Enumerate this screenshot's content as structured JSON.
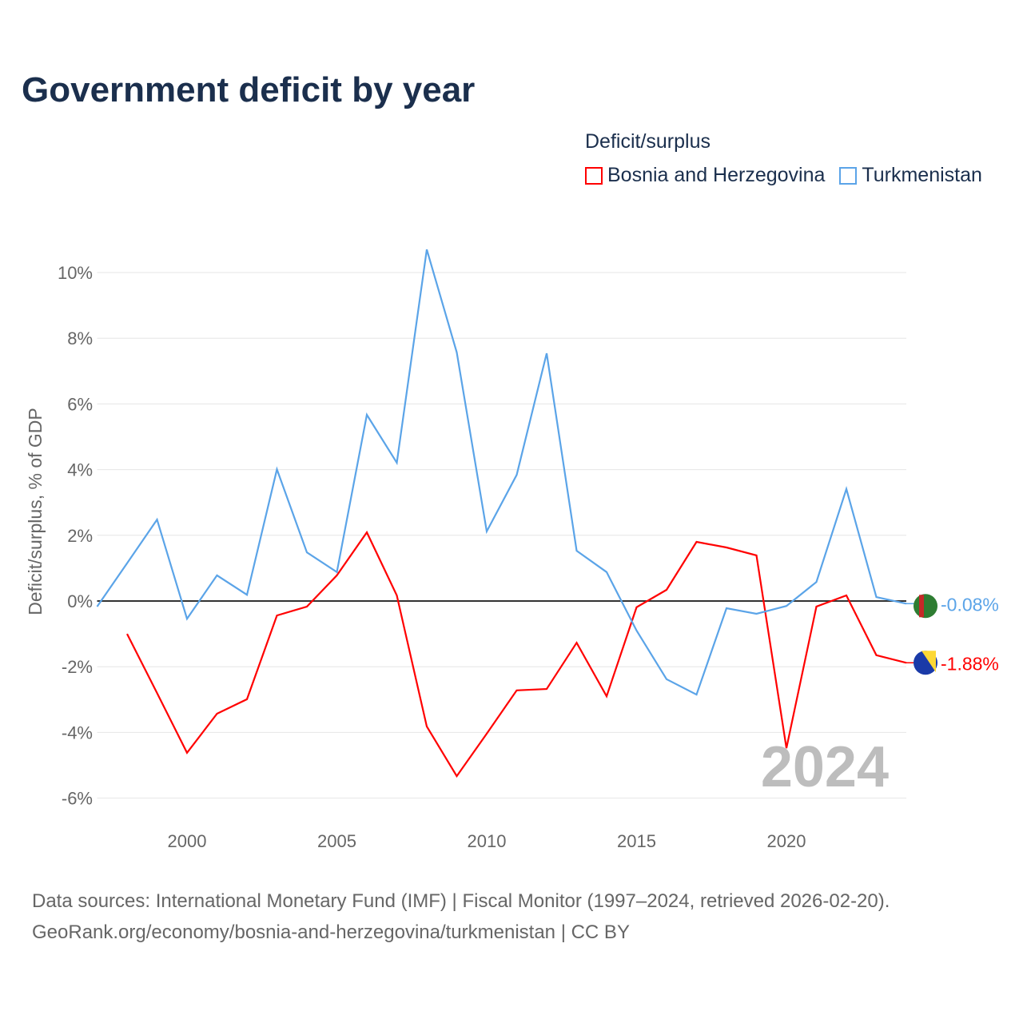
{
  "title": "Government deficit by year",
  "legend_title": "Deficit/surplus",
  "source_line1": "Data sources: International Monetary Fund (IMF) | Fiscal Monitor (1997–2024, retrieved 2026-02-20).",
  "source_line2": "GeoRank.org/economy/bosnia-and-herzegovina/turkmenistan | CC BY",
  "chart_data": {
    "type": "line",
    "title": "Government deficit by year",
    "xlabel": "",
    "ylabel": "Deficit/surplus, % of GDP",
    "xlim": [
      1997,
      2024
    ],
    "ylim": [
      -7,
      11
    ],
    "xticks": [
      2000,
      2005,
      2010,
      2015,
      2020
    ],
    "yticks": [
      -6,
      -4,
      -2,
      0,
      2,
      4,
      6,
      8,
      10
    ],
    "ytick_labels": [
      "-6%",
      "-4%",
      "-2%",
      "0%",
      "2%",
      "4%",
      "6%",
      "8%",
      "10%"
    ],
    "grid": true,
    "legend_position": "top-right",
    "year_watermark": "2024",
    "series": [
      {
        "name": "Bosnia and Herzegovina",
        "color": "#ff0000",
        "end_label": "-1.88%",
        "x": [
          1998,
          1999,
          2000,
          2001,
          2002,
          2003,
          2004,
          2005,
          2006,
          2007,
          2008,
          2009,
          2010,
          2011,
          2012,
          2013,
          2014,
          2015,
          2016,
          2017,
          2018,
          2019,
          2020,
          2021,
          2022,
          2023,
          2024
        ],
        "values": [
          -1.0,
          -2.8,
          -4.62,
          -3.43,
          -2.99,
          -0.44,
          -0.17,
          0.78,
          2.09,
          0.17,
          -3.82,
          -5.33,
          -4.04,
          -2.72,
          -2.68,
          -1.27,
          -2.9,
          -0.19,
          0.34,
          1.8,
          1.63,
          1.39,
          -4.48,
          -0.17,
          0.17,
          -1.65,
          -1.88
        ]
      },
      {
        "name": "Turkmenistan",
        "color": "#5ba4e8",
        "end_label": "-0.08%",
        "x": [
          1997,
          1998,
          1999,
          2000,
          2001,
          2002,
          2003,
          2004,
          2005,
          2006,
          2007,
          2008,
          2009,
          2010,
          2011,
          2012,
          2013,
          2014,
          2015,
          2016,
          2017,
          2018,
          2019,
          2020,
          2021,
          2022,
          2023,
          2024
        ],
        "values": [
          -0.17,
          1.15,
          2.48,
          -0.54,
          0.78,
          0.19,
          4.01,
          1.48,
          0.88,
          5.67,
          4.21,
          10.7,
          7.57,
          2.12,
          3.84,
          7.54,
          1.53,
          0.88,
          -0.9,
          -2.38,
          -2.85,
          -0.22,
          -0.39,
          -0.15,
          0.58,
          3.41,
          0.12,
          -0.08
        ]
      }
    ]
  }
}
